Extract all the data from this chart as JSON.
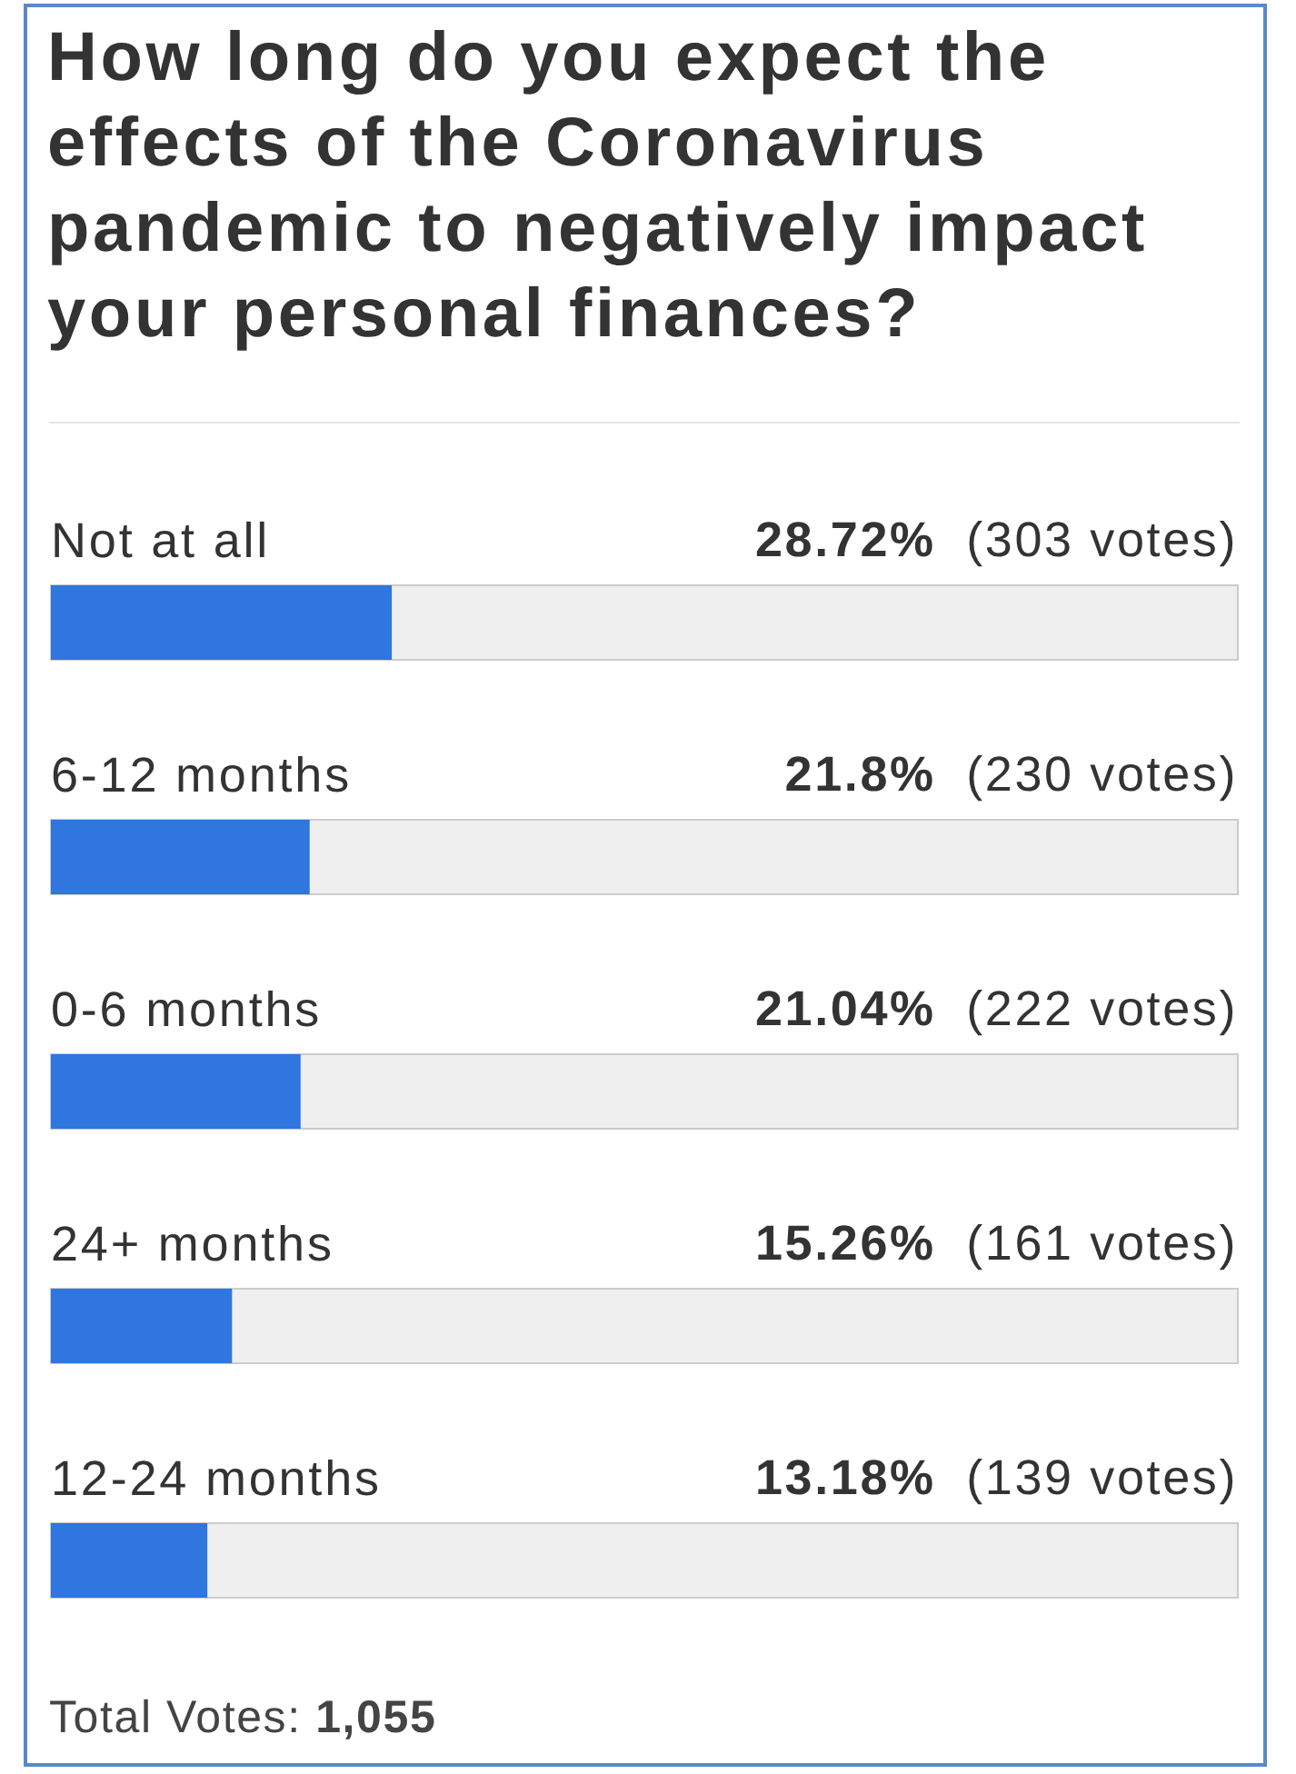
{
  "chart_data": {
    "type": "bar",
    "orientation": "horizontal",
    "title": "How long do you expect the effects of the Coronavirus pandemic to negatively impact your personal finances?",
    "categories": [
      "Not at all",
      "6-12 months",
      "0-6 months",
      "24+ months",
      "12-24 months"
    ],
    "values": [
      28.72,
      21.8,
      21.04,
      15.26,
      13.18
    ],
    "color": "#2f76df",
    "value_labels": [
      "28.72% (303 votes)",
      "21.8% (230 votes)",
      "21.04% (222 votes)",
      "15.26% (161 votes)",
      "13.18% (139 votes)"
    ],
    "xlim": [
      0,
      100
    ],
    "tick_labels": "y",
    "annotations": [
      "Total Votes: 1,055"
    ]
  }
}
